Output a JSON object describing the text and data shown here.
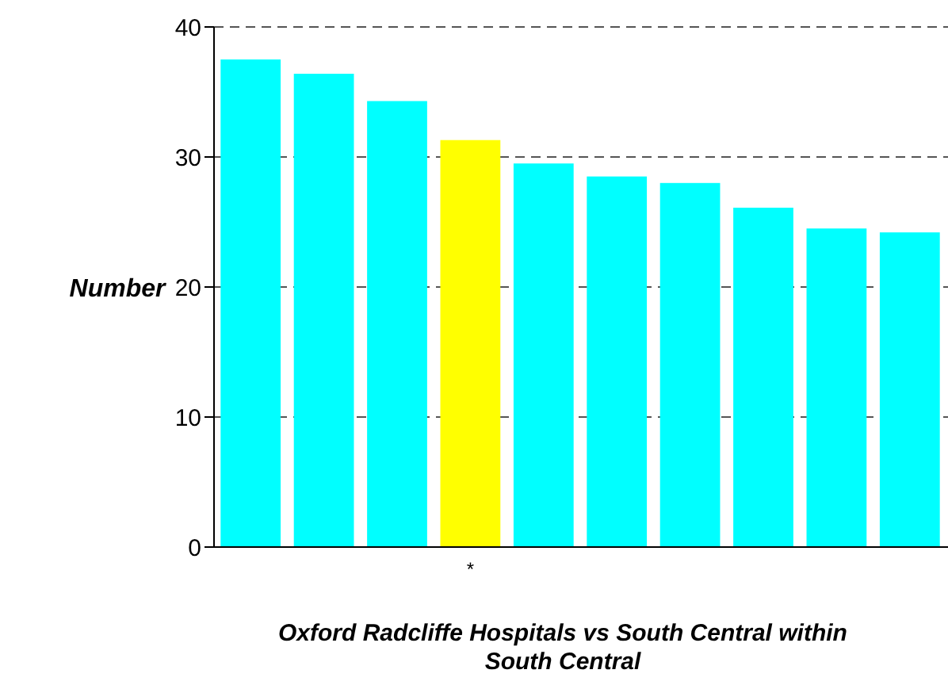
{
  "chart_data": {
    "type": "bar",
    "xlabel": "Oxford Radcliffe Hospitals vs South Central within South Central",
    "ylabel": "Number",
    "categories": [
      null,
      null,
      null,
      "*",
      null,
      null,
      null,
      null,
      null,
      null
    ],
    "values": [
      37.5,
      36.4,
      34.3,
      31.3,
      29.5,
      28.5,
      28.0,
      26.1,
      24.5,
      24.2
    ],
    "colors": [
      "#00ffff",
      "#00ffff",
      "#00ffff",
      "#ffff00",
      "#00ffff",
      "#00ffff",
      "#00ffff",
      "#00ffff",
      "#00ffff",
      "#00ffff"
    ],
    "ylim": [
      0,
      40
    ],
    "yticks": [
      0,
      10,
      20,
      30,
      40
    ],
    "grid": "y",
    "line_style": "dashed"
  }
}
